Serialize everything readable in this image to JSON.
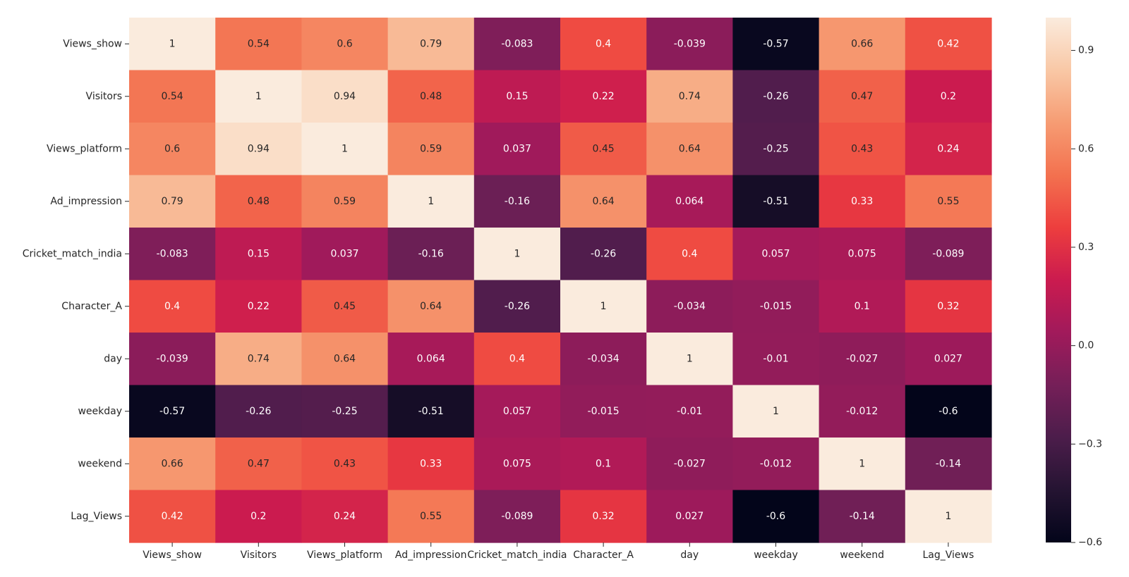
{
  "chart_data": {
    "type": "heatmap",
    "title": "",
    "xlabel": "",
    "ylabel": "",
    "x_categories": [
      "Views_show",
      "Visitors",
      "Views_platform",
      "Ad_impression",
      "Cricket_match_india",
      "Character_A",
      "day",
      "weekday",
      "weekend",
      "Lag_Views"
    ],
    "y_categories": [
      "Views_show",
      "Visitors",
      "Views_platform",
      "Ad_impression",
      "Cricket_match_india",
      "Character_A",
      "day",
      "weekday",
      "weekend",
      "Lag_Views"
    ],
    "values": [
      [
        1,
        0.54,
        0.6,
        0.79,
        -0.083,
        0.4,
        -0.039,
        -0.57,
        0.66,
        0.42
      ],
      [
        0.54,
        1,
        0.94,
        0.48,
        0.15,
        0.22,
        0.74,
        -0.26,
        0.47,
        0.2
      ],
      [
        0.6,
        0.94,
        1,
        0.59,
        0.037,
        0.45,
        0.64,
        -0.25,
        0.43,
        0.24
      ],
      [
        0.79,
        0.48,
        0.59,
        1,
        -0.16,
        0.64,
        0.064,
        -0.51,
        0.33,
        0.55
      ],
      [
        -0.083,
        0.15,
        0.037,
        -0.16,
        1,
        -0.26,
        0.4,
        0.057,
        0.075,
        -0.089
      ],
      [
        0.4,
        0.22,
        0.45,
        0.64,
        -0.26,
        1,
        -0.034,
        -0.015,
        0.1,
        0.32
      ],
      [
        -0.039,
        0.74,
        0.64,
        0.064,
        0.4,
        -0.034,
        1,
        -0.01,
        -0.027,
        0.027
      ],
      [
        -0.57,
        -0.26,
        -0.25,
        -0.51,
        0.057,
        -0.015,
        -0.01,
        1,
        -0.012,
        -0.6
      ],
      [
        0.66,
        0.47,
        0.43,
        0.33,
        0.075,
        0.1,
        -0.027,
        -0.012,
        1,
        -0.14
      ],
      [
        0.42,
        0.2,
        0.24,
        0.55,
        -0.089,
        0.32,
        0.027,
        -0.6,
        -0.14,
        1
      ]
    ],
    "cell_labels": [
      [
        "1",
        "0.54",
        "0.6",
        "0.79",
        "-0.083",
        "0.4",
        "-0.039",
        "-0.57",
        "0.66",
        "0.42"
      ],
      [
        "0.54",
        "1",
        "0.94",
        "0.48",
        "0.15",
        "0.22",
        "0.74",
        "-0.26",
        "0.47",
        "0.2"
      ],
      [
        "0.6",
        "0.94",
        "1",
        "0.59",
        "0.037",
        "0.45",
        "0.64",
        "-0.25",
        "0.43",
        "0.24"
      ],
      [
        "0.79",
        "0.48",
        "0.59",
        "1",
        "-0.16",
        "0.64",
        "0.064",
        "-0.51",
        "0.33",
        "0.55"
      ],
      [
        "-0.083",
        "0.15",
        "0.037",
        "-0.16",
        "1",
        "-0.26",
        "0.4",
        "0.057",
        "0.075",
        "-0.089"
      ],
      [
        "0.4",
        "0.22",
        "0.45",
        "0.64",
        "-0.26",
        "1",
        "-0.034",
        "-0.015",
        "0.1",
        "0.32"
      ],
      [
        "-0.039",
        "0.74",
        "0.64",
        "0.064",
        "0.4",
        "-0.034",
        "1",
        "-0.01",
        "-0.027",
        "0.027"
      ],
      [
        "-0.57",
        "-0.26",
        "-0.25",
        "-0.51",
        "0.057",
        "-0.015",
        "-0.01",
        "1",
        "-0.012",
        "-0.6"
      ],
      [
        "0.66",
        "0.47",
        "0.43",
        "0.33",
        "0.075",
        "0.1",
        "-0.027",
        "-0.012",
        "1",
        "-0.14"
      ],
      [
        "0.42",
        "0.2",
        "0.24",
        "0.55",
        "-0.089",
        "0.32",
        "0.027",
        "-0.6",
        "-0.14",
        "1"
      ]
    ],
    "colorbar": {
      "range": [
        -0.6,
        1.0
      ],
      "ticks": [
        0.9,
        0.6,
        0.3,
        0.0,
        -0.3,
        -0.6
      ],
      "tick_labels": [
        "0.9",
        "0.6",
        "0.3",
        "0.0",
        "−0.3",
        "−0.6"
      ]
    },
    "colormap": {
      "name": "rocket",
      "stops": [
        "#03051a",
        "#251432",
        "#4c1d4b",
        "#751f58",
        "#a11a5b",
        "#cb1b4f",
        "#ed3e3e",
        "#f3714f",
        "#f69c73",
        "#f9c8a6",
        "#faebdd"
      ]
    },
    "grid": false,
    "legend": "colorbar-right"
  }
}
